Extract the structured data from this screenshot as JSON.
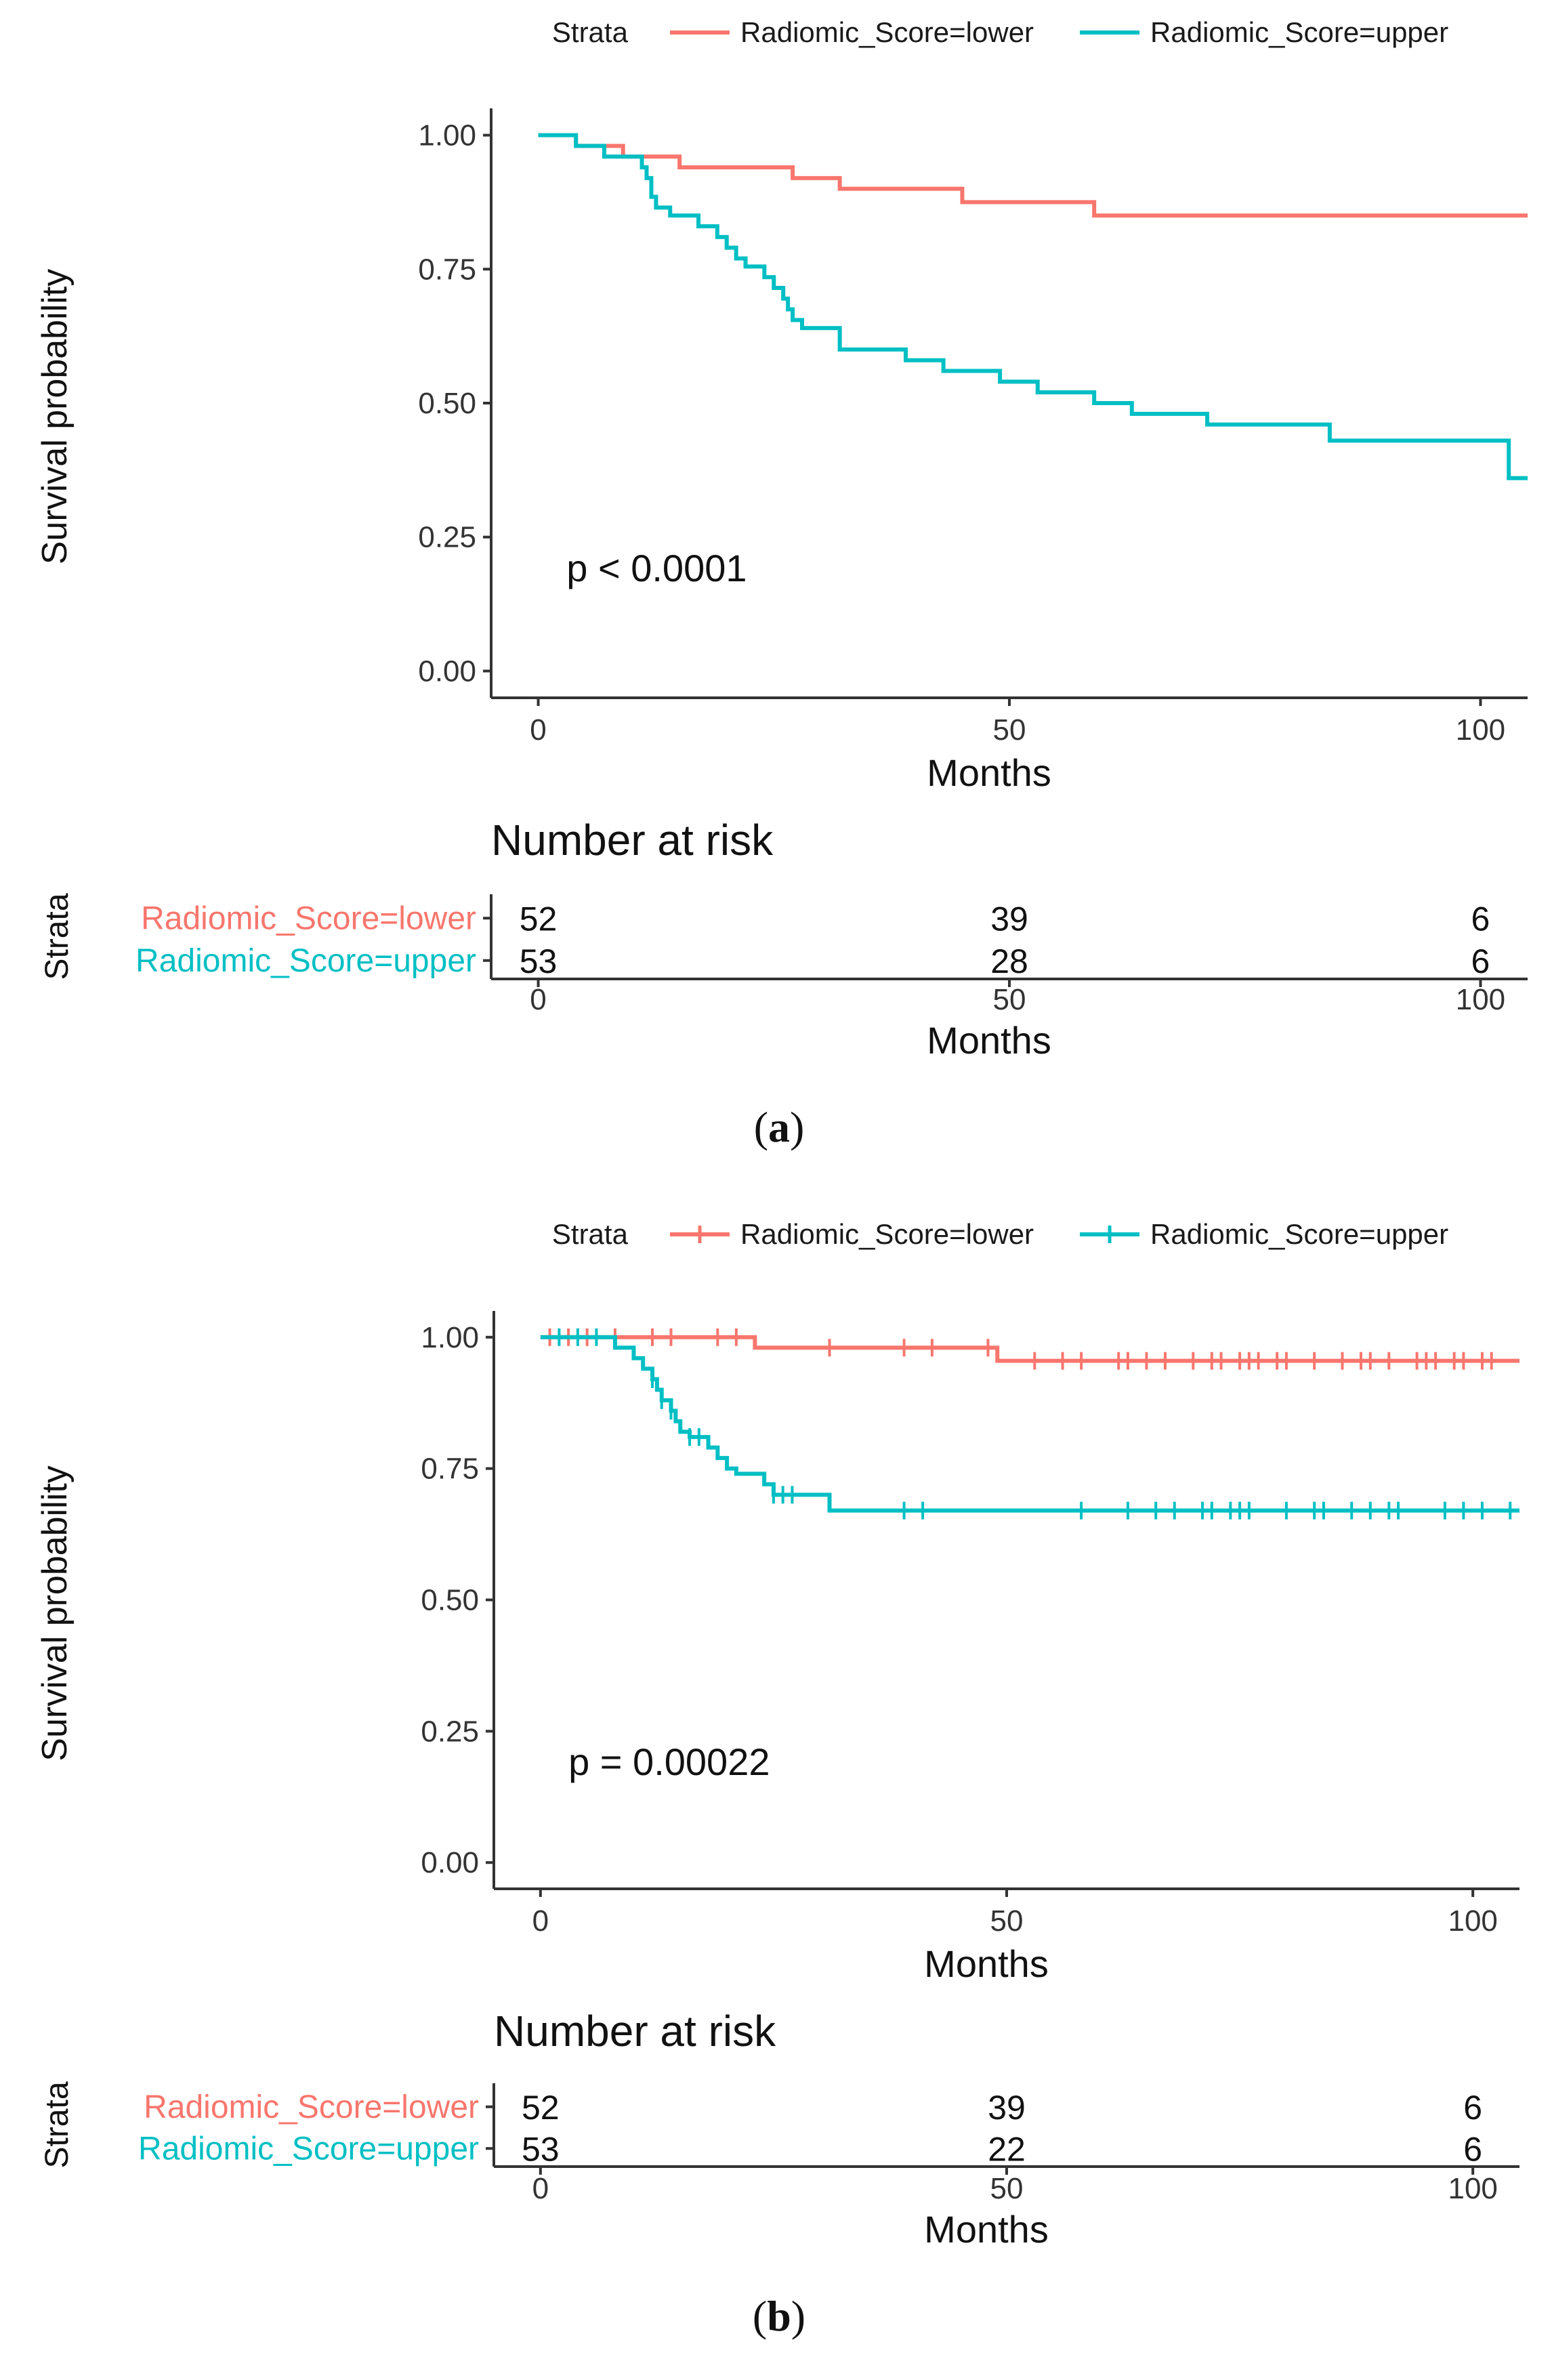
{
  "chart_data": [
    {
      "id": "a",
      "type": "line",
      "subtype": "kaplan-meier",
      "caption": "(a)",
      "caption_letter": "a",
      "legend_title": "Strata",
      "legend_position": "top",
      "legend_marker": "line",
      "xlabel": "Months",
      "ylabel": "Survival probability",
      "xlim": [
        -5,
        105
      ],
      "ylim": [
        -0.05,
        1.05
      ],
      "x_ticks": [
        0,
        50,
        100
      ],
      "y_ticks": [
        0.0,
        0.25,
        0.5,
        0.75,
        1.0
      ],
      "y_tick_labels": [
        "0.00",
        "0.25",
        "0.50",
        "0.75",
        "1.00"
      ],
      "grid": false,
      "annotation": "p < 0.0001",
      "annotation_position": {
        "x": 3,
        "y": 0.19
      },
      "series": [
        {
          "name": "Radiomic_Score=lower",
          "color": "#F8766D",
          "censor_marks": false,
          "steps": [
            [
              0,
              1.0
            ],
            [
              4,
              0.98
            ],
            [
              9,
              0.96
            ],
            [
              15,
              0.94
            ],
            [
              27,
              0.92
            ],
            [
              32,
              0.9
            ],
            [
              45,
              0.875
            ],
            [
              59,
              0.85
            ],
            [
              105,
              0.85
            ]
          ],
          "censor_times": []
        },
        {
          "name": "Radiomic_Score=upper",
          "color": "#00BFC4",
          "censor_marks": false,
          "steps": [
            [
              0,
              1.0
            ],
            [
              4,
              0.98
            ],
            [
              7,
              0.96
            ],
            [
              11,
              0.94
            ],
            [
              11.5,
              0.92
            ],
            [
              12,
              0.885
            ],
            [
              12.5,
              0.865
            ],
            [
              14,
              0.85
            ],
            [
              17,
              0.83
            ],
            [
              19,
              0.81
            ],
            [
              20,
              0.79
            ],
            [
              21,
              0.77
            ],
            [
              22,
              0.755
            ],
            [
              24,
              0.735
            ],
            [
              25,
              0.715
            ],
            [
              26,
              0.695
            ],
            [
              26.5,
              0.675
            ],
            [
              27,
              0.655
            ],
            [
              28,
              0.64
            ],
            [
              32,
              0.6
            ],
            [
              39,
              0.58
            ],
            [
              43,
              0.56
            ],
            [
              49,
              0.54
            ],
            [
              53,
              0.52
            ],
            [
              59,
              0.5
            ],
            [
              63,
              0.48
            ],
            [
              71,
              0.46
            ],
            [
              84,
              0.43
            ],
            [
              103,
              0.36
            ],
            [
              105,
              0.36
            ]
          ],
          "censor_times": []
        }
      ],
      "risk_table": {
        "title": "Number at risk",
        "ylabel": "Strata",
        "xlabel": "Months",
        "times": [
          0,
          50,
          100
        ],
        "rows": [
          {
            "name": "Radiomic_Score=lower",
            "color": "#F8766D",
            "counts": [
              "52",
              "39",
              "6"
            ]
          },
          {
            "name": "Radiomic_Score=upper",
            "color": "#00BFC4",
            "counts": [
              "53",
              "28",
              "6"
            ]
          }
        ]
      }
    },
    {
      "id": "b",
      "type": "line",
      "subtype": "kaplan-meier",
      "caption": "(b)",
      "caption_letter": "b",
      "legend_title": "Strata",
      "legend_position": "top",
      "legend_marker": "line-with-censor",
      "xlabel": "Months",
      "ylabel": "Survival probability",
      "xlim": [
        -5,
        105
      ],
      "ylim": [
        -0.05,
        1.05
      ],
      "x_ticks": [
        0,
        50,
        100
      ],
      "y_ticks": [
        0.0,
        0.25,
        0.5,
        0.75,
        1.0
      ],
      "y_tick_labels": [
        "0.00",
        "0.25",
        "0.50",
        "0.75",
        "1.00"
      ],
      "grid": false,
      "annotation": "p = 0.00022",
      "annotation_position": {
        "x": 3,
        "y": 0.19
      },
      "series": [
        {
          "name": "Radiomic_Score=lower",
          "color": "#F8766D",
          "censor_marks": true,
          "steps": [
            [
              0,
              1.0
            ],
            [
              23,
              0.98
            ],
            [
              49,
              0.955
            ],
            [
              105,
              0.955
            ]
          ],
          "censor_times": [
            1,
            3,
            5,
            8,
            12,
            14,
            19,
            21,
            31,
            39,
            42,
            48,
            53,
            56,
            58,
            62,
            63,
            65,
            67,
            70,
            72,
            73,
            75,
            76,
            77,
            79,
            80,
            83,
            86,
            88,
            89,
            91,
            94,
            95,
            96,
            98,
            99,
            101,
            102
          ]
        },
        {
          "name": "Radiomic_Score=upper",
          "color": "#00BFC4",
          "censor_marks": true,
          "steps": [
            [
              0,
              1.0
            ],
            [
              8,
              0.98
            ],
            [
              10,
              0.96
            ],
            [
              11,
              0.94
            ],
            [
              12,
              0.92
            ],
            [
              12.5,
              0.9
            ],
            [
              13,
              0.88
            ],
            [
              14,
              0.86
            ],
            [
              14.5,
              0.84
            ],
            [
              15,
              0.82
            ],
            [
              16,
              0.81
            ],
            [
              18,
              0.79
            ],
            [
              19,
              0.77
            ],
            [
              20,
              0.75
            ],
            [
              21,
              0.74
            ],
            [
              24,
              0.72
            ],
            [
              25,
              0.7
            ],
            [
              31,
              0.67
            ],
            [
              105,
              0.67
            ]
          ],
          "censor_times": [
            2,
            4,
            6,
            12,
            13,
            14,
            16,
            17,
            25,
            26,
            27,
            39,
            41,
            58,
            63,
            66,
            68,
            71,
            72,
            74,
            75,
            76,
            80,
            83,
            84,
            87,
            89,
            91,
            92,
            97,
            99,
            101,
            104
          ]
        }
      ],
      "risk_table": {
        "title": "Number at risk",
        "ylabel": "Strata",
        "xlabel": "Months",
        "times": [
          0,
          50,
          100
        ],
        "rows": [
          {
            "name": "Radiomic_Score=lower",
            "color": "#F8766D",
            "counts": [
              "52",
              "39",
              "6"
            ]
          },
          {
            "name": "Radiomic_Score=upper",
            "color": "#00BFC4",
            "counts": [
              "53",
              "22",
              "6"
            ]
          }
        ]
      }
    }
  ]
}
